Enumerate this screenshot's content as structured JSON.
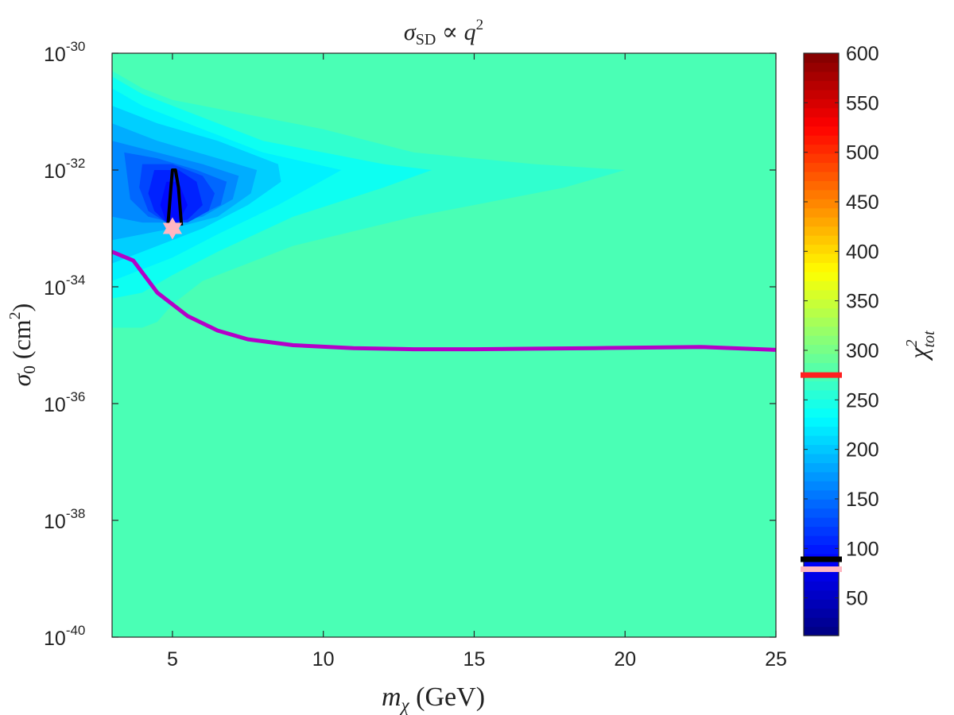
{
  "chart_data": {
    "type": "heatmap",
    "title": {
      "main": "σ",
      "sub": "SD",
      "rel": " ∝ ",
      "var": "q",
      "sup": "2"
    },
    "xlabel": {
      "var": "m",
      "sub": "χ",
      "unit": " (GeV)"
    },
    "ylabel": {
      "var": "σ",
      "sub": "0",
      "unit_open": " (cm",
      "sup": "2",
      "unit_close": ")"
    },
    "colorbar_label": {
      "var": "χ",
      "sup": "2",
      "sub": "tot"
    },
    "x_range": [
      3,
      25
    ],
    "x_ticks": [
      5,
      10,
      15,
      20,
      25
    ],
    "y_scale": "log",
    "y_range_log10": [
      -40,
      -30
    ],
    "y_ticks": [
      {
        "base": "10",
        "exp": "-30",
        "log10": -30
      },
      {
        "base": "10",
        "exp": "-32",
        "log10": -32
      },
      {
        "base": "10",
        "exp": "-34",
        "log10": -34
      },
      {
        "base": "10",
        "exp": "-36",
        "log10": -36
      },
      {
        "base": "10",
        "exp": "-38",
        "log10": -38
      },
      {
        "base": "10",
        "exp": "-40",
        "log10": -40
      }
    ],
    "colorbar_range": [
      12,
      600
    ],
    "colorbar_ticks": [
      "50",
      "100",
      "150",
      "200",
      "250",
      "300",
      "350",
      "400",
      "450",
      "500",
      "550",
      "600"
    ],
    "colormap": "jet",
    "background_value": 275,
    "contour_regions": [
      {
        "value": 260,
        "poly": [
          [
            3,
            -30.3
          ],
          [
            4,
            -30.6
          ],
          [
            5,
            -30.8
          ],
          [
            7,
            -31.0
          ],
          [
            10,
            -31.3
          ],
          [
            13,
            -31.7
          ],
          [
            17,
            -31.9
          ],
          [
            20,
            -32.0
          ],
          [
            18,
            -32.3
          ],
          [
            13,
            -32.8
          ],
          [
            9,
            -33.3
          ],
          [
            6,
            -33.9
          ],
          [
            5,
            -34.3
          ],
          [
            4.5,
            -34.6
          ],
          [
            4,
            -34.7
          ],
          [
            3,
            -34.7
          ]
        ]
      },
      {
        "value": 240,
        "poly": [
          [
            3,
            -30.4
          ],
          [
            4,
            -30.7
          ],
          [
            6,
            -31.1
          ],
          [
            8,
            -31.5
          ],
          [
            10,
            -31.7
          ],
          [
            12,
            -31.9
          ],
          [
            13.6,
            -32.0
          ],
          [
            12,
            -32.3
          ],
          [
            9,
            -32.8
          ],
          [
            6.5,
            -33.4
          ],
          [
            5,
            -33.8
          ],
          [
            4,
            -34.1
          ],
          [
            3,
            -34.2
          ]
        ]
      },
      {
        "value": 225,
        "poly": [
          [
            3,
            -30.6
          ],
          [
            4,
            -30.9
          ],
          [
            6,
            -31.3
          ],
          [
            8,
            -31.7
          ],
          [
            10.6,
            -32.0
          ],
          [
            8.5,
            -32.6
          ],
          [
            6.5,
            -33.1
          ],
          [
            5,
            -33.5
          ],
          [
            4,
            -33.7
          ],
          [
            3,
            -33.9
          ]
        ]
      },
      {
        "value": 205,
        "poly": [
          [
            3,
            -30.9
          ],
          [
            4.5,
            -31.2
          ],
          [
            6.5,
            -31.5
          ],
          [
            8.5,
            -31.9
          ],
          [
            8.6,
            -32.2
          ],
          [
            7.5,
            -32.6
          ],
          [
            6,
            -33.0
          ],
          [
            5,
            -33.2
          ],
          [
            4,
            -33.4
          ],
          [
            3,
            -33.6
          ]
        ]
      },
      {
        "value": 185,
        "poly": [
          [
            3,
            -31.2
          ],
          [
            4.5,
            -31.5
          ],
          [
            6.5,
            -31.8
          ],
          [
            7.8,
            -32.0
          ],
          [
            7.6,
            -32.4
          ],
          [
            6.5,
            -32.8
          ],
          [
            5,
            -33.0
          ],
          [
            4,
            -33.1
          ],
          [
            3,
            -33.2
          ]
        ]
      },
      {
        "value": 165,
        "poly": [
          [
            3,
            -31.5
          ],
          [
            4.5,
            -31.7
          ],
          [
            6,
            -31.9
          ],
          [
            7.2,
            -32.1
          ],
          [
            7.0,
            -32.5
          ],
          [
            6,
            -32.8
          ],
          [
            5,
            -32.9
          ],
          [
            4,
            -32.9
          ],
          [
            3,
            -32.8
          ]
        ]
      },
      {
        "value": 145,
        "poly": [
          [
            3.4,
            -31.7
          ],
          [
            4.5,
            -31.8
          ],
          [
            5.8,
            -32.0
          ],
          [
            6.8,
            -32.2
          ],
          [
            6.6,
            -32.6
          ],
          [
            5.8,
            -32.8
          ],
          [
            5,
            -32.9
          ],
          [
            4.2,
            -32.8
          ],
          [
            3.6,
            -32.5
          ]
        ]
      },
      {
        "value": 125,
        "poly": [
          [
            4,
            -31.9
          ],
          [
            5,
            -31.9
          ],
          [
            6,
            -32.1
          ],
          [
            6.4,
            -32.4
          ],
          [
            6.2,
            -32.7
          ],
          [
            5.5,
            -32.9
          ],
          [
            4.8,
            -32.9
          ],
          [
            4.2,
            -32.7
          ],
          [
            3.9,
            -32.3
          ]
        ]
      },
      {
        "value": 105,
        "poly": [
          [
            4.4,
            -32.0
          ],
          [
            5.2,
            -32.0
          ],
          [
            5.8,
            -32.2
          ],
          [
            6.0,
            -32.6
          ],
          [
            5.5,
            -32.85
          ],
          [
            4.8,
            -32.9
          ],
          [
            4.4,
            -32.7
          ],
          [
            4.2,
            -32.4
          ]
        ]
      },
      {
        "value": 92,
        "poly": [
          [
            4.8,
            -32.2
          ],
          [
            5.2,
            -32.2
          ],
          [
            5.5,
            -32.6
          ],
          [
            5.2,
            -32.9
          ],
          [
            4.8,
            -32.9
          ],
          [
            4.6,
            -32.6
          ]
        ]
      }
    ],
    "best_fit_contour": {
      "color": "#000000",
      "points": [
        [
          4.85,
          -32.95
        ],
        [
          4.95,
          -32.3
        ],
        [
          5.0,
          -32.0
        ],
        [
          5.1,
          -32.0
        ],
        [
          5.2,
          -32.3
        ],
        [
          5.3,
          -32.95
        ]
      ]
    },
    "limit_curve": {
      "color": "#b400c8",
      "points": [
        [
          3.0,
          -33.4
        ],
        [
          3.7,
          -33.55
        ],
        [
          4.5,
          -34.1
        ],
        [
          5.5,
          -34.5
        ],
        [
          6.5,
          -34.75
        ],
        [
          7.5,
          -34.9
        ],
        [
          9,
          -35.0
        ],
        [
          11,
          -35.05
        ],
        [
          13,
          -35.07
        ],
        [
          15,
          -35.07
        ],
        [
          17,
          -35.06
        ],
        [
          19,
          -35.05
        ],
        [
          21,
          -35.04
        ],
        [
          22.5,
          -35.03
        ],
        [
          25,
          -35.08
        ]
      ]
    },
    "best_fit_point": {
      "x": 5.0,
      "y_log10": -33.0,
      "color": "#ffb6c1"
    },
    "colorbar_markers": [
      {
        "value": 275,
        "color": "#ff2020"
      },
      {
        "value": 89,
        "color": "#000000"
      },
      {
        "value": 79,
        "color": "#ffb6c1"
      }
    ]
  }
}
